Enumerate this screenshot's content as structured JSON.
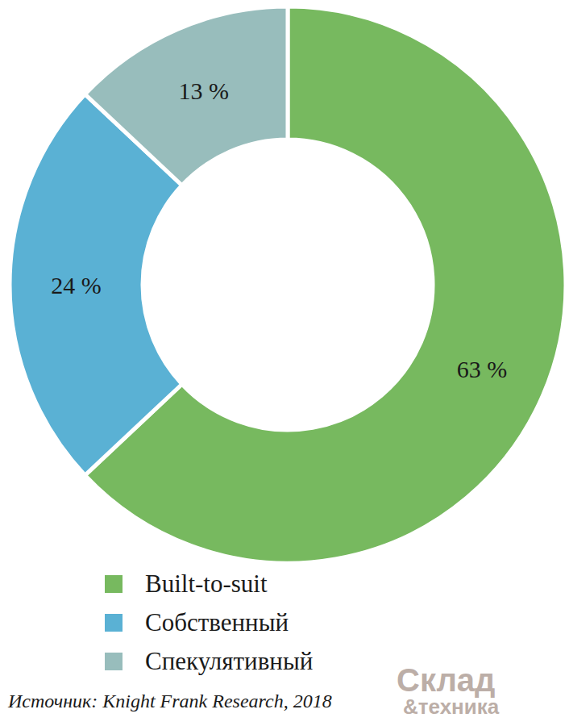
{
  "chart_data": {
    "type": "pie",
    "categories": [
      "Built-to-suit",
      "Собственный",
      "Спекулятивный"
    ],
    "values": [
      63,
      24,
      13
    ],
    "value_labels": [
      "63 %",
      "24 %",
      "13 %"
    ],
    "colors": [
      "#77b95f",
      "#5ab1d4",
      "#98bdbc"
    ],
    "data_labels": true,
    "legend": "bottom",
    "annotations": [
      "Источник: Knight Frank Research, 2018",
      "Склад",
      "&техника"
    ]
  }
}
